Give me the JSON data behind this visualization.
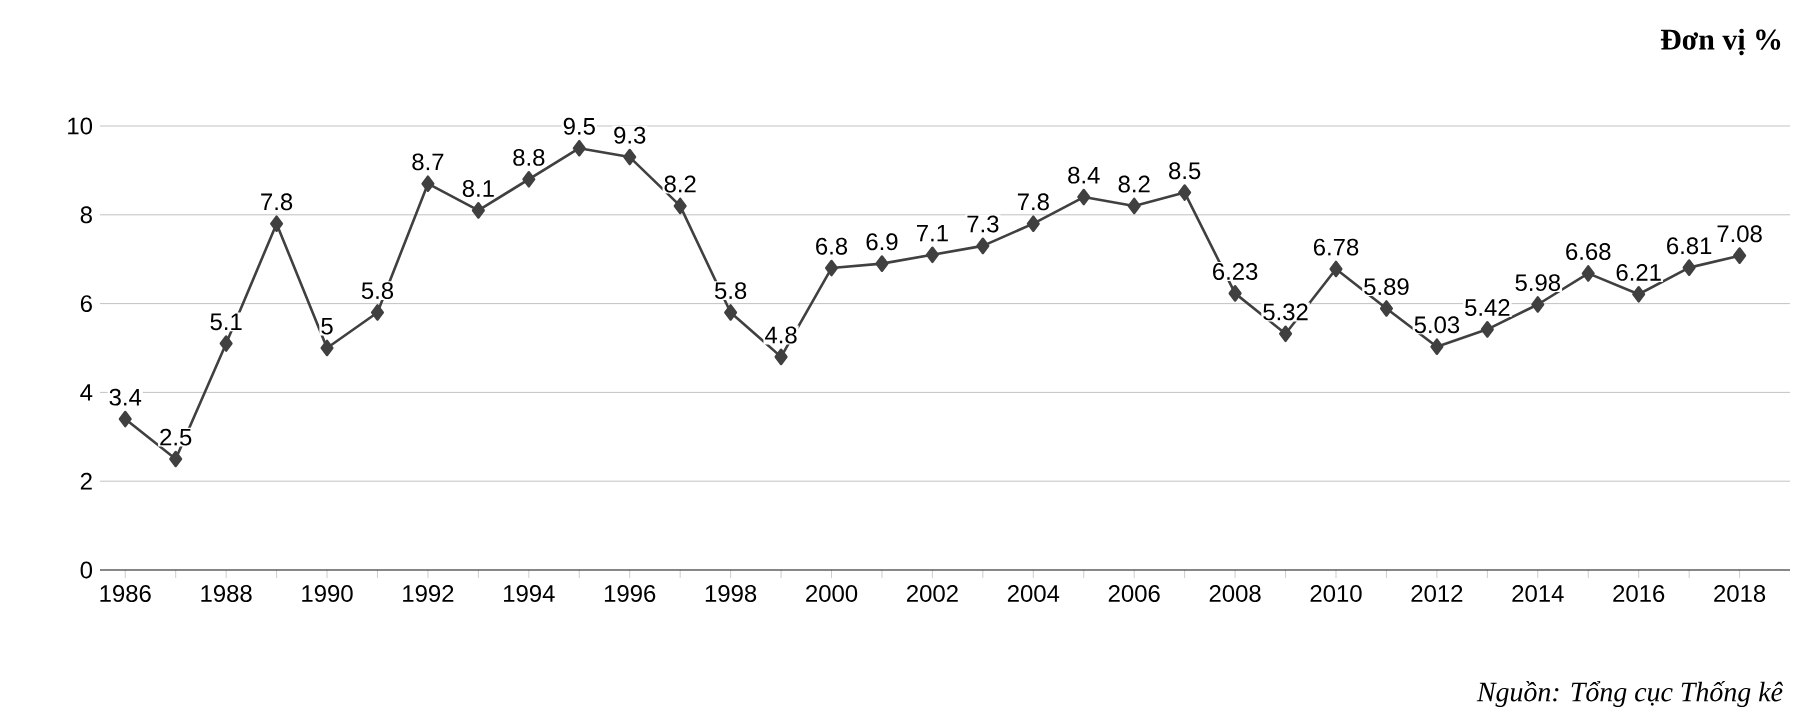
{
  "chart_data": {
    "type": "line",
    "x": [
      1986,
      1987,
      1988,
      1989,
      1990,
      1991,
      1992,
      1993,
      1994,
      1995,
      1996,
      1997,
      1998,
      1999,
      2000,
      2001,
      2002,
      2003,
      2004,
      2005,
      2006,
      2007,
      2008,
      2009,
      2010,
      2011,
      2012,
      2013,
      2014,
      2015,
      2016,
      2017,
      2018
    ],
    "values": [
      3.4,
      2.5,
      5.1,
      7.8,
      5,
      5.8,
      8.7,
      8.1,
      8.8,
      9.5,
      9.3,
      8.2,
      5.8,
      4.8,
      6.8,
      6.9,
      7.1,
      7.3,
      7.8,
      8.4,
      8.2,
      8.5,
      6.23,
      5.32,
      6.78,
      5.89,
      5.03,
      5.42,
      5.98,
      6.68,
      6.21,
      6.81,
      7.08
    ],
    "color": "#404040",
    "marker": "diamond",
    "line_style": "solid",
    "data_labels": true,
    "grid": "y",
    "xlim": [
      1985.5,
      2019
    ],
    "xticks": [
      1986,
      1988,
      1990,
      1992,
      1994,
      1996,
      1998,
      2000,
      2002,
      2004,
      2006,
      2008,
      2010,
      2012,
      2014,
      2016,
      2018
    ],
    "ylim": [
      0,
      10
    ],
    "yticks": [
      0,
      2,
      4,
      6,
      8,
      10
    ],
    "annotations": [
      "**Đơn vị %**",
      "*Nguồn: Tổng cục Thống kê*"
    ]
  }
}
